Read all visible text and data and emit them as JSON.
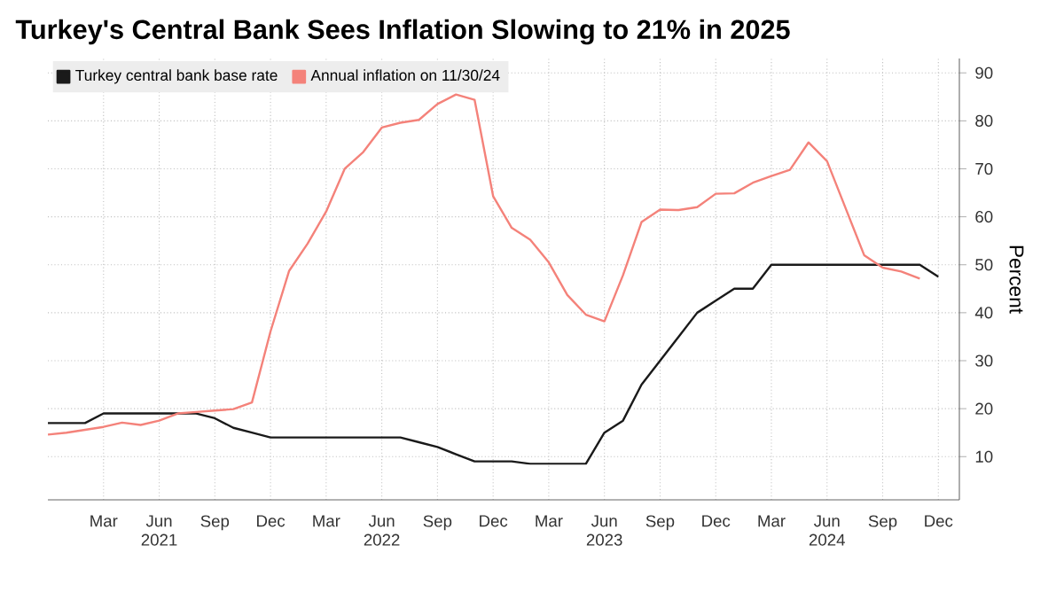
{
  "chart_data": {
    "type": "line",
    "title": "Turkey's Central Bank Sees Inflation Slowing to 21% in 2025",
    "ylabel": "Percent",
    "x": [
      "2020-12",
      "2021-01",
      "2021-02",
      "2021-03",
      "2021-04",
      "2021-05",
      "2021-06",
      "2021-07",
      "2021-08",
      "2021-09",
      "2021-10",
      "2021-11",
      "2021-12",
      "2022-01",
      "2022-02",
      "2022-03",
      "2022-04",
      "2022-05",
      "2022-06",
      "2022-07",
      "2022-08",
      "2022-09",
      "2022-10",
      "2022-11",
      "2022-12",
      "2023-01",
      "2023-02",
      "2023-03",
      "2023-04",
      "2023-05",
      "2023-06",
      "2023-07",
      "2023-08",
      "2023-09",
      "2023-10",
      "2023-11",
      "2023-12",
      "2024-01",
      "2024-02",
      "2024-03",
      "2024-04",
      "2024-05",
      "2024-06",
      "2024-07",
      "2024-08",
      "2024-09",
      "2024-10",
      "2024-11",
      "2024-12"
    ],
    "series": [
      {
        "name": "Turkey central bank base rate",
        "color": "#1a1a1a",
        "values": [
          17,
          17,
          17,
          19,
          19,
          19,
          19,
          19,
          19,
          18,
          16,
          15,
          14,
          14,
          14,
          14,
          14,
          14,
          14,
          14,
          13,
          12,
          10.5,
          9,
          9,
          9,
          8.5,
          8.5,
          8.5,
          8.5,
          15,
          17.5,
          25,
          30,
          35,
          40,
          42.5,
          45,
          45,
          50,
          50,
          50,
          50,
          50,
          50,
          50,
          50,
          50,
          47.5
        ]
      },
      {
        "name": "Annual inflation on 11/30/24",
        "color": "#f4827a",
        "values": [
          14.6,
          15.0,
          15.6,
          16.2,
          17.1,
          16.6,
          17.5,
          19.0,
          19.3,
          19.6,
          19.9,
          21.3,
          36.1,
          48.7,
          54.4,
          61.1,
          70.0,
          73.5,
          78.6,
          79.6,
          80.2,
          83.5,
          85.5,
          84.4,
          64.3,
          57.7,
          55.2,
          50.5,
          43.7,
          39.6,
          38.2,
          47.8,
          58.9,
          61.5,
          61.4,
          62.0,
          64.8,
          64.9,
          67.1,
          68.5,
          69.8,
          75.5,
          71.6,
          61.8,
          52.0,
          49.4,
          48.6,
          47.1,
          null
        ]
      }
    ],
    "xlim": [
      "2020-12",
      "2025-01-05"
    ],
    "xticks": [
      {
        "value": "2021-03",
        "label": "Mar"
      },
      {
        "value": "2021-06",
        "label": "Jun 2021"
      },
      {
        "value": "2021-09",
        "label": "Sep"
      },
      {
        "value": "2021-12",
        "label": "Dec"
      },
      {
        "value": "2022-03",
        "label": "Mar"
      },
      {
        "value": "2022-06",
        "label": "Jun 2022"
      },
      {
        "value": "2022-09",
        "label": "Sep"
      },
      {
        "value": "2022-12",
        "label": "Dec"
      },
      {
        "value": "2023-03",
        "label": "Mar"
      },
      {
        "value": "2023-06",
        "label": "Jun 2023"
      },
      {
        "value": "2023-09",
        "label": "Sep"
      },
      {
        "value": "2023-12",
        "label": "Dec"
      },
      {
        "value": "2024-03",
        "label": "Mar"
      },
      {
        "value": "2024-06",
        "label": "Jun 2024"
      },
      {
        "value": "2024-09",
        "label": "Sep"
      },
      {
        "value": "2024-12",
        "label": "Dec"
      }
    ],
    "ylim": [
      1,
      93
    ],
    "yticks": [
      10,
      20,
      30,
      40,
      50,
      60,
      70,
      80,
      90
    ],
    "grid": true,
    "legend": "top left",
    "line_style": "solid"
  }
}
